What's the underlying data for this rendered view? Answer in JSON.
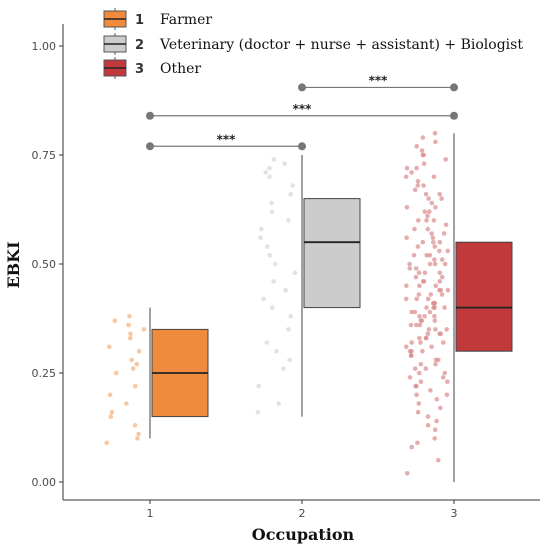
{
  "chart_data": {
    "type": "boxplot",
    "xlabel": "Occupation",
    "ylabel": "EBKI",
    "ylim": [
      -0.05,
      1.05
    ],
    "yticks": [
      "0.00",
      "0.25",
      "0.50",
      "0.75",
      "1.00"
    ],
    "categories": [
      "1",
      "2",
      "3"
    ],
    "legend": {
      "placement": "top-left",
      "entries": [
        {
          "number": "1",
          "label": "Farmer"
        },
        {
          "number": "2",
          "label": "Veterinary (doctor + nurse + assistant) + Biologist"
        },
        {
          "number": "3",
          "label": "Other"
        }
      ]
    },
    "boxes": [
      {
        "category": "1",
        "color": "#f08a3c",
        "point_color": "#f3b07a",
        "whisker_low": 0.1,
        "q1": 0.15,
        "median": 0.25,
        "q3": 0.35,
        "whisker_high": 0.4
      },
      {
        "category": "2",
        "color": "#cccccc",
        "point_color": "#d8d8d8",
        "whisker_low": 0.15,
        "q1": 0.4,
        "median": 0.55,
        "q3": 0.65,
        "whisker_high": 0.75
      },
      {
        "category": "3",
        "color": "#c0393b",
        "point_color": "#d98a8c",
        "whisker_low": 0.0,
        "q1": 0.3,
        "median": 0.4,
        "q3": 0.55,
        "whisker_high": 0.8
      }
    ],
    "significance": [
      {
        "from": "1",
        "to": "2",
        "y": 0.77,
        "label": "***"
      },
      {
        "from": "1",
        "to": "3",
        "y": 0.84,
        "label": "***"
      },
      {
        "from": "2",
        "to": "3",
        "y": 0.905,
        "label": "***"
      }
    ],
    "jitter_points": [
      {
        "category": "1",
        "values": [
          0.38,
          0.37,
          0.36,
          0.35,
          0.34,
          0.33,
          0.31,
          0.3,
          0.28,
          0.27,
          0.26,
          0.25,
          0.22,
          0.2,
          0.18,
          0.16,
          0.15,
          0.13,
          0.11,
          0.1,
          0.09
        ]
      },
      {
        "category": "2",
        "values": [
          0.74,
          0.73,
          0.72,
          0.71,
          0.7,
          0.68,
          0.66,
          0.64,
          0.62,
          0.6,
          0.58,
          0.56,
          0.54,
          0.52,
          0.5,
          0.48,
          0.46,
          0.44,
          0.42,
          0.4,
          0.38,
          0.35,
          0.32,
          0.3,
          0.28,
          0.26,
          0.22,
          0.18,
          0.16
        ]
      },
      {
        "category": "3",
        "values": [
          0.8,
          0.79,
          0.78,
          0.77,
          0.76,
          0.75,
          0.75,
          0.74,
          0.73,
          0.72,
          0.72,
          0.71,
          0.7,
          0.7,
          0.69,
          0.68,
          0.68,
          0.67,
          0.66,
          0.66,
          0.65,
          0.65,
          0.64,
          0.63,
          0.63,
          0.62,
          0.62,
          0.61,
          0.6,
          0.6,
          0.6,
          0.59,
          0.58,
          0.58,
          0.57,
          0.57,
          0.56,
          0.56,
          0.55,
          0.55,
          0.55,
          0.54,
          0.54,
          0.53,
          0.53,
          0.52,
          0.52,
          0.52,
          0.51,
          0.51,
          0.5,
          0.5,
          0.5,
          0.5,
          0.49,
          0.49,
          0.48,
          0.48,
          0.48,
          0.47,
          0.47,
          0.46,
          0.46,
          0.46,
          0.45,
          0.45,
          0.45,
          0.44,
          0.44,
          0.44,
          0.43,
          0.43,
          0.43,
          0.42,
          0.42,
          0.42,
          0.41,
          0.41,
          0.41,
          0.4,
          0.4,
          0.4,
          0.4,
          0.39,
          0.39,
          0.39,
          0.38,
          0.38,
          0.38,
          0.37,
          0.37,
          0.37,
          0.36,
          0.36,
          0.36,
          0.35,
          0.35,
          0.35,
          0.34,
          0.34,
          0.34,
          0.33,
          0.33,
          0.33,
          0.32,
          0.32,
          0.32,
          0.31,
          0.31,
          0.3,
          0.3,
          0.3,
          0.29,
          0.29,
          0.28,
          0.28,
          0.27,
          0.27,
          0.26,
          0.26,
          0.25,
          0.25,
          0.24,
          0.24,
          0.23,
          0.23,
          0.22,
          0.22,
          0.21,
          0.2,
          0.2,
          0.19,
          0.18,
          0.17,
          0.16,
          0.15,
          0.14,
          0.13,
          0.12,
          0.1,
          0.09,
          0.08,
          0.05,
          0.02
        ]
      }
    ]
  }
}
